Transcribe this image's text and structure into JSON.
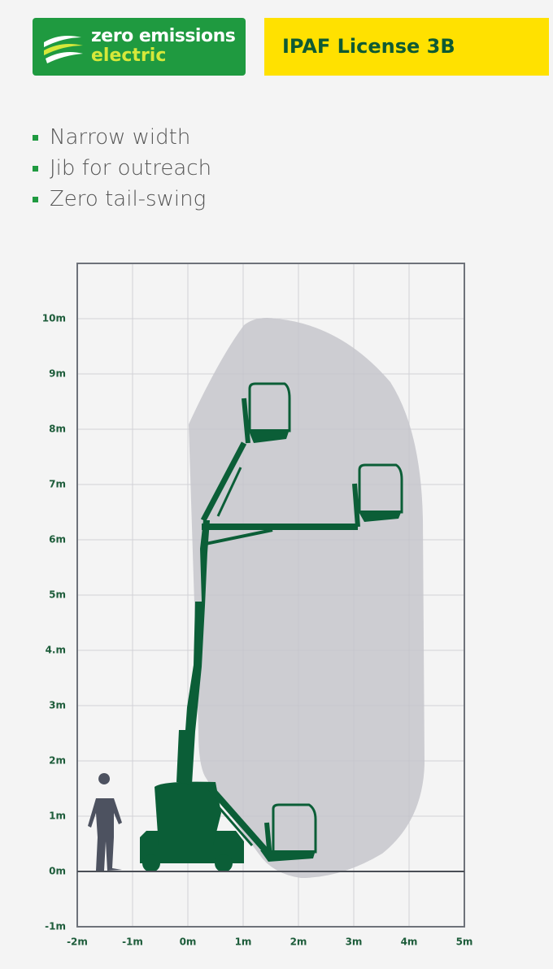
{
  "badge": {
    "line1": "zero emissions",
    "line2": "electric"
  },
  "license": "IPAF License 3B",
  "features": [
    "Narrow width",
    "Jib for outreach",
    "Zero tail-swing"
  ],
  "chart_data": {
    "type": "diagram",
    "xlim": [
      -2,
      5
    ],
    "xticks": [
      {
        "value": -2,
        "label": "-2m"
      },
      {
        "value": -1,
        "label": "-1m"
      },
      {
        "value": 0,
        "label": "0m"
      },
      {
        "value": 1,
        "label": "1m"
      },
      {
        "value": 2,
        "label": "2m"
      },
      {
        "value": 3,
        "label": "3m"
      },
      {
        "value": 4,
        "label": "4m"
      },
      {
        "value": 5,
        "label": "5m"
      }
    ],
    "ylim": [
      -1,
      11
    ],
    "yticks": [
      {
        "value": -1,
        "label": "-1m"
      },
      {
        "value": 0,
        "label": "0m"
      },
      {
        "value": 1,
        "label": "1m"
      },
      {
        "value": 2,
        "label": "2m"
      },
      {
        "value": 3,
        "label": "3m"
      },
      {
        "value": 4,
        "label": "4.m"
      },
      {
        "value": 5,
        "label": "5m"
      },
      {
        "value": 6,
        "label": "6m"
      },
      {
        "value": 7,
        "label": "7m"
      },
      {
        "value": 8,
        "label": "8m"
      },
      {
        "value": 9,
        "label": "9m"
      },
      {
        "value": 10,
        "label": "10m"
      }
    ],
    "grid": true
  }
}
